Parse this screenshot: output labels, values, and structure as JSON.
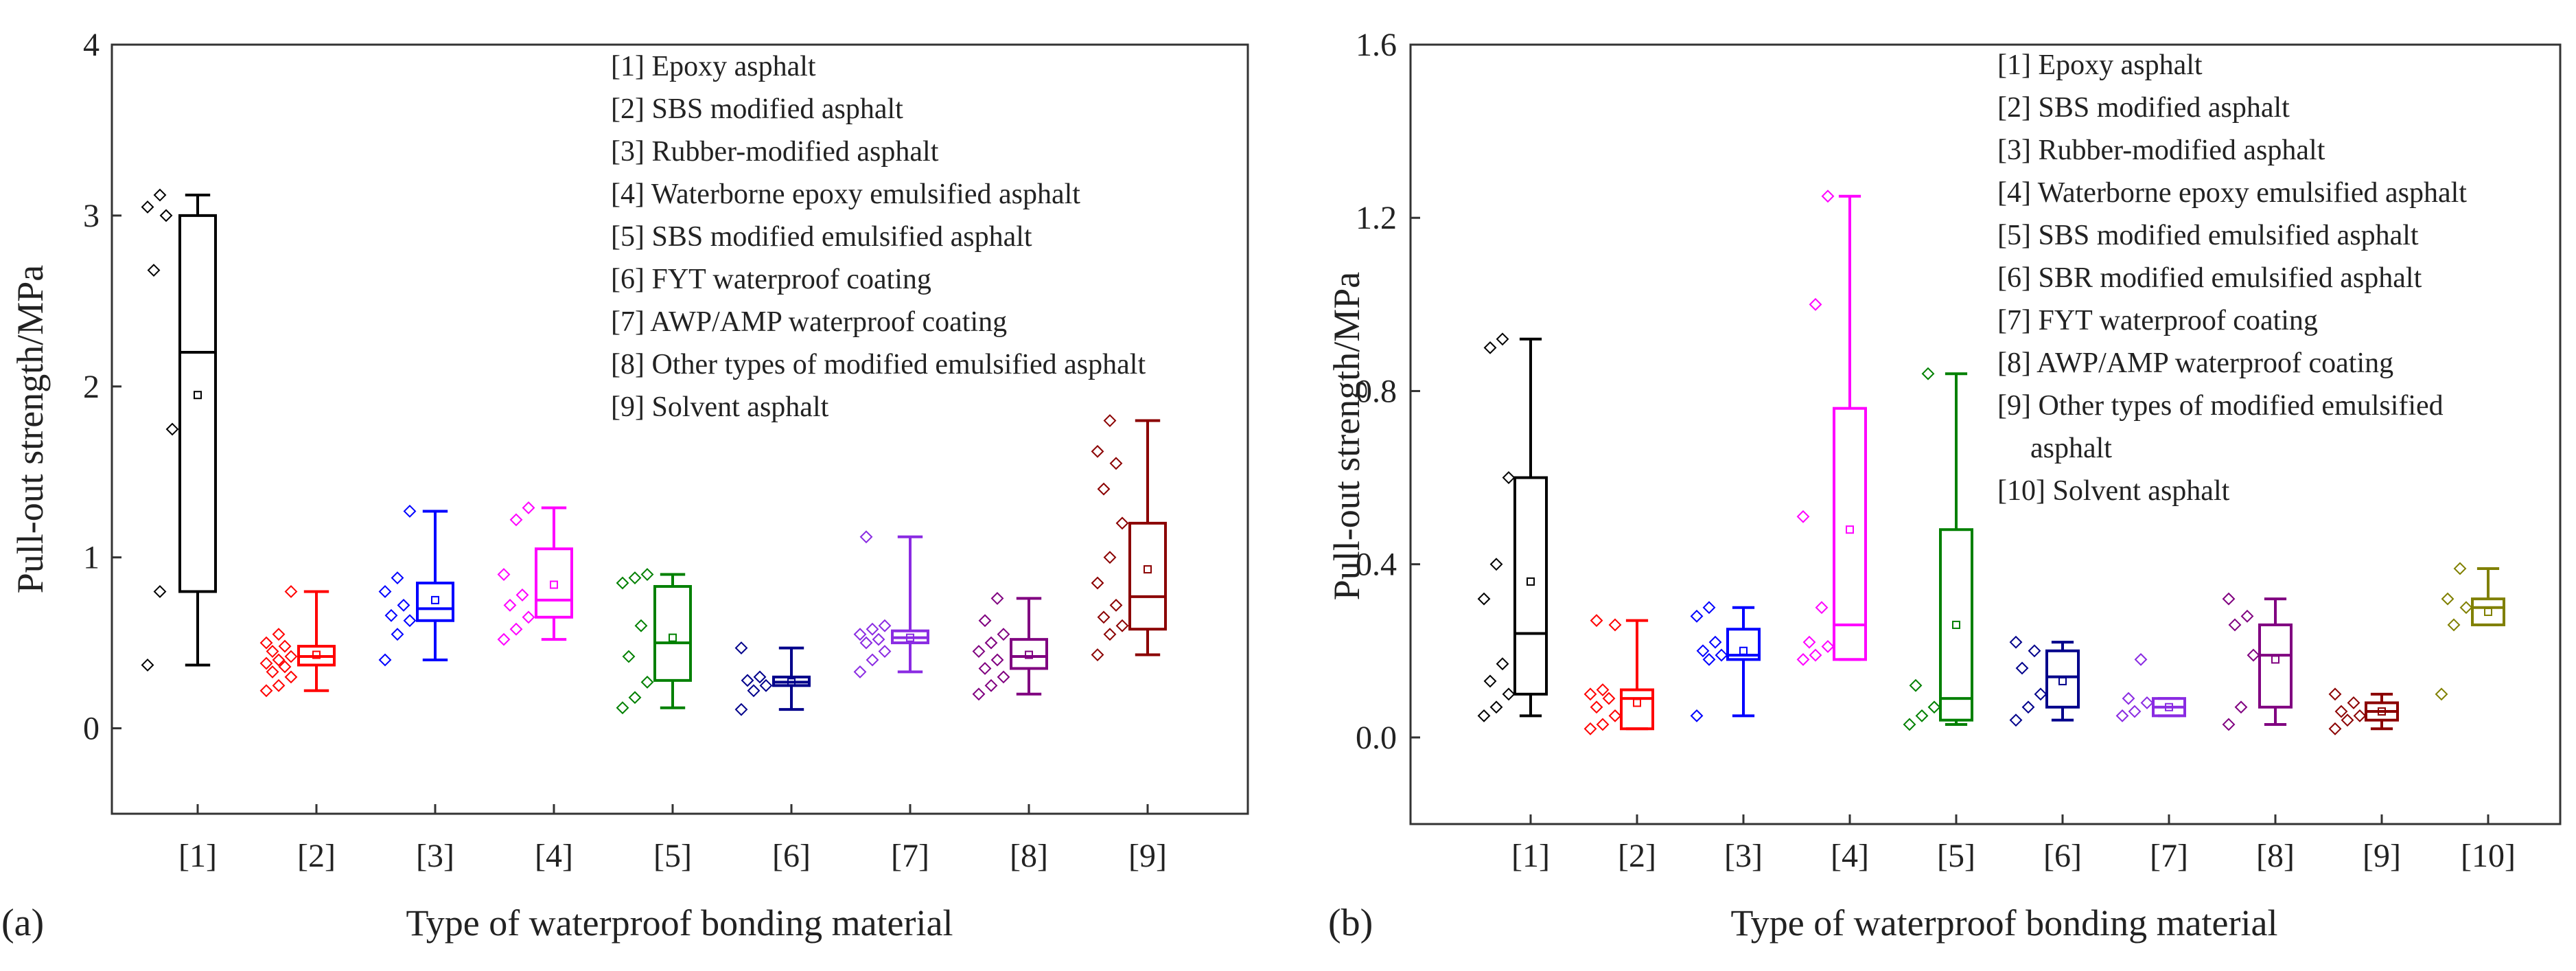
{
  "chart_data": [
    {
      "panel": "(a)",
      "type": "box",
      "xlabel": "Type of waterproof bonding material",
      "ylabel": "Pull-out strength/MPa",
      "ylim": [
        -0.5,
        4
      ],
      "yticks": [
        "0",
        "1",
        "2",
        "3",
        "4"
      ],
      "ytick_values": [
        0,
        1,
        2,
        3,
        4
      ],
      "categories": [
        "[1]",
        "[2]",
        "[3]",
        "[4]",
        "[5]",
        "[6]",
        "[7]",
        "[8]",
        "[9]"
      ],
      "legend": [
        "[1] Epoxy asphalt",
        "[2] SBS modified asphalt",
        "[3] Rubber-modified asphalt",
        "[4] Waterborne epoxy emulsified asphalt",
        "[5] SBS modified emulsified asphalt",
        "[6] FYT waterproof coating",
        "[7] AWP/AMP waterproof coating",
        "[8] Other types of modified emulsified asphalt",
        "[9] Solvent asphalt"
      ],
      "series": [
        {
          "name": "[1]",
          "color": "#000000",
          "min": 0.37,
          "q1": 0.8,
          "median": 2.2,
          "q3": 3.0,
          "max": 3.12,
          "mean": 1.95,
          "points": [
            0.37,
            0.8,
            1.75,
            2.68,
            3.0,
            3.05,
            3.12
          ]
        },
        {
          "name": "[2]",
          "color": "#ff0000",
          "min": 0.22,
          "q1": 0.37,
          "median": 0.42,
          "q3": 0.48,
          "max": 0.8,
          "mean": 0.43,
          "points": [
            0.22,
            0.25,
            0.3,
            0.33,
            0.36,
            0.38,
            0.4,
            0.42,
            0.45,
            0.48,
            0.5,
            0.55,
            0.8
          ]
        },
        {
          "name": "[3]",
          "color": "#0000ff",
          "min": 0.4,
          "q1": 0.63,
          "median": 0.7,
          "q3": 0.85,
          "max": 1.27,
          "mean": 0.75,
          "points": [
            0.4,
            0.55,
            0.63,
            0.66,
            0.72,
            0.8,
            0.88,
            1.27
          ]
        },
        {
          "name": "[4]",
          "color": "#ff00ff",
          "min": 0.52,
          "q1": 0.65,
          "median": 0.75,
          "q3": 1.05,
          "max": 1.29,
          "mean": 0.84,
          "points": [
            0.52,
            0.58,
            0.65,
            0.72,
            0.78,
            0.9,
            1.22,
            1.29
          ]
        },
        {
          "name": "[5]",
          "color": "#008000",
          "min": 0.12,
          "q1": 0.28,
          "median": 0.5,
          "q3": 0.83,
          "max": 0.9,
          "mean": 0.53,
          "points": [
            0.12,
            0.18,
            0.27,
            0.42,
            0.6,
            0.85,
            0.88,
            0.9
          ]
        },
        {
          "name": "[6]",
          "color": "#00008b",
          "min": 0.11,
          "q1": 0.25,
          "median": 0.27,
          "q3": 0.3,
          "max": 0.47,
          "mean": 0.27,
          "points": [
            0.11,
            0.22,
            0.25,
            0.28,
            0.3,
            0.47
          ]
        },
        {
          "name": "[7]",
          "color": "#8a2be2",
          "min": 0.33,
          "q1": 0.5,
          "median": 0.53,
          "q3": 0.57,
          "max": 1.12,
          "mean": 0.53,
          "points": [
            0.33,
            0.4,
            0.45,
            0.5,
            0.52,
            0.55,
            0.58,
            0.6,
            1.12
          ]
        },
        {
          "name": "[8]",
          "color": "#800080",
          "min": 0.2,
          "q1": 0.35,
          "median": 0.42,
          "q3": 0.52,
          "max": 0.76,
          "mean": 0.43,
          "points": [
            0.2,
            0.25,
            0.3,
            0.35,
            0.4,
            0.45,
            0.5,
            0.55,
            0.63,
            0.76
          ]
        },
        {
          "name": "[9]",
          "color": "#8b0000",
          "min": 0.43,
          "q1": 0.58,
          "median": 0.77,
          "q3": 1.2,
          "max": 1.8,
          "mean": 0.93,
          "points": [
            0.43,
            0.55,
            0.6,
            0.65,
            0.72,
            0.85,
            1.0,
            1.2,
            1.4,
            1.55,
            1.62,
            1.8
          ]
        }
      ]
    },
    {
      "panel": "(b)",
      "type": "box",
      "xlabel": "Type of waterproof bonding material",
      "ylabel": "Pull-out strength/MPa",
      "ylim": [
        -0.2,
        1.6
      ],
      "yticks": [
        "0.0",
        "0.4",
        "0.8",
        "1.2",
        "1.6"
      ],
      "ytick_values": [
        0,
        0.4,
        0.8,
        1.2,
        1.6
      ],
      "categories": [
        "[1]",
        "[2]",
        "[3]",
        "[4]",
        "[5]",
        "[6]",
        "[7]",
        "[8]",
        "[9]",
        "[10]"
      ],
      "legend": [
        "[1] Epoxy asphalt",
        "[2] SBS modified asphalt",
        "[3] Rubber-modified asphalt",
        "[4] Waterborne epoxy emulsified asphalt",
        "[5] SBS modified emulsified asphalt",
        "[6] SBR modified emulsified asphalt",
        "[7] FYT waterproof coating",
        "[8] AWP/AMP waterproof coating",
        "[9] Other types of modified emulsified",
        "asphalt",
        "[10] Solvent asphalt"
      ],
      "series": [
        {
          "name": "[1]",
          "color": "#000000",
          "min": 0.05,
          "q1": 0.1,
          "median": 0.24,
          "q3": 0.6,
          "max": 0.92,
          "mean": 0.36,
          "points": [
            0.05,
            0.07,
            0.1,
            0.13,
            0.17,
            0.32,
            0.4,
            0.6,
            0.9,
            0.92
          ]
        },
        {
          "name": "[2]",
          "color": "#ff0000",
          "min": 0.02,
          "q1": 0.02,
          "median": 0.09,
          "q3": 0.11,
          "max": 0.27,
          "mean": 0.08,
          "points": [
            0.02,
            0.03,
            0.05,
            0.07,
            0.09,
            0.1,
            0.11,
            0.26,
            0.27
          ]
        },
        {
          "name": "[3]",
          "color": "#0000ff",
          "min": 0.05,
          "q1": 0.18,
          "median": 0.19,
          "q3": 0.25,
          "max": 0.3,
          "mean": 0.2,
          "points": [
            0.05,
            0.18,
            0.19,
            0.2,
            0.22,
            0.28,
            0.3
          ]
        },
        {
          "name": "[4]",
          "color": "#ff00ff",
          "min": 0.18,
          "q1": 0.18,
          "median": 0.26,
          "q3": 0.76,
          "max": 1.25,
          "mean": 0.48,
          "points": [
            0.18,
            0.19,
            0.21,
            0.22,
            0.3,
            0.51,
            1.0,
            1.25
          ]
        },
        {
          "name": "[5]",
          "color": "#008000",
          "min": 0.03,
          "q1": 0.04,
          "median": 0.09,
          "q3": 0.48,
          "max": 0.84,
          "mean": 0.26,
          "points": [
            0.03,
            0.05,
            0.07,
            0.12,
            0.84
          ]
        },
        {
          "name": "[6]",
          "color": "#00008b",
          "min": 0.04,
          "q1": 0.07,
          "median": 0.14,
          "q3": 0.2,
          "max": 0.22,
          "mean": 0.13,
          "points": [
            0.04,
            0.07,
            0.1,
            0.16,
            0.2,
            0.22
          ]
        },
        {
          "name": "[7]",
          "color": "#8a2be2",
          "min": 0.05,
          "q1": 0.05,
          "median": 0.07,
          "q3": 0.09,
          "max": 0.09,
          "mean": 0.07,
          "points": [
            0.05,
            0.06,
            0.08,
            0.09,
            0.18
          ]
        },
        {
          "name": "[8]",
          "color": "#800080",
          "min": 0.03,
          "q1": 0.07,
          "median": 0.19,
          "q3": 0.26,
          "max": 0.32,
          "mean": 0.18,
          "points": [
            0.03,
            0.07,
            0.19,
            0.26,
            0.28,
            0.32
          ]
        },
        {
          "name": "[9]",
          "color": "#8b0000",
          "min": 0.02,
          "q1": 0.04,
          "median": 0.06,
          "q3": 0.08,
          "max": 0.1,
          "mean": 0.06,
          "points": [
            0.02,
            0.04,
            0.05,
            0.06,
            0.08,
            0.1
          ]
        },
        {
          "name": "[10]",
          "color": "#808000",
          "min": 0.26,
          "q1": 0.26,
          "median": 0.3,
          "q3": 0.32,
          "max": 0.39,
          "mean": 0.29,
          "points": [
            0.1,
            0.26,
            0.3,
            0.32,
            0.39
          ]
        }
      ]
    }
  ]
}
